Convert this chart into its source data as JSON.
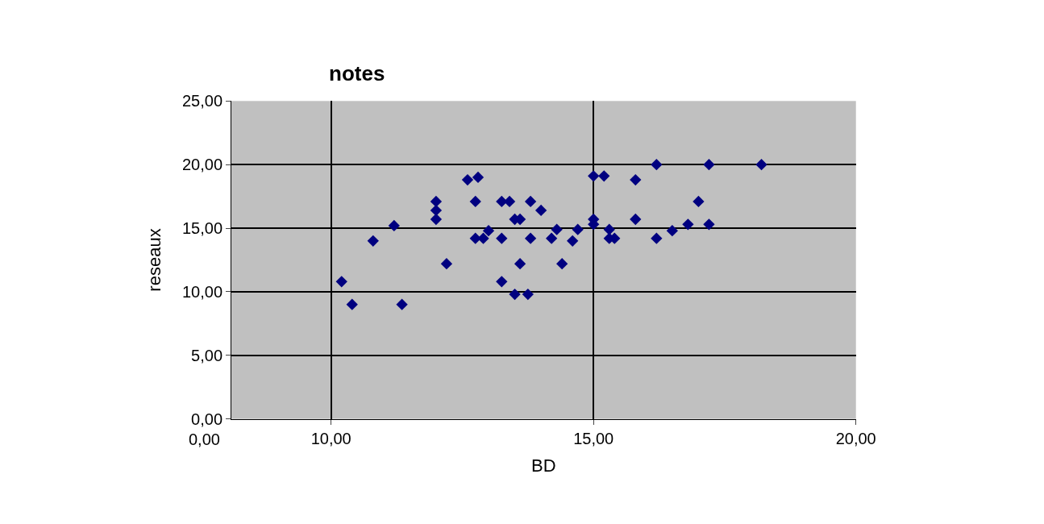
{
  "chart_data": {
    "type": "scatter",
    "title": "notes",
    "xlabel": "BD",
    "ylabel": "reseaux",
    "color": "#000080",
    "marker": "diamond",
    "grid": true,
    "annotations": [
      "0,00"
    ],
    "x": [
      10.2,
      10.4,
      10.8,
      11.2,
      11.35,
      12.0,
      12.0,
      12.0,
      12.2,
      12.6,
      12.8,
      12.75,
      12.75,
      12.9,
      13.0,
      13.25,
      13.4,
      13.25,
      13.25,
      13.5,
      13.6,
      13.6,
      13.5,
      13.75,
      13.8,
      13.8,
      14.0,
      14.2,
      14.3,
      14.4,
      14.6,
      14.7,
      15.0,
      15.2,
      15.0,
      15.0,
      15.3,
      15.3,
      15.4,
      15.8,
      15.8,
      16.2,
      16.2,
      16.5,
      16.8,
      17.0,
      17.2,
      17.2,
      18.2
    ],
    "values": [
      10.8,
      9.0,
      14.0,
      15.2,
      9.0,
      17.1,
      16.4,
      15.7,
      12.2,
      18.8,
      19.0,
      17.1,
      14.2,
      14.2,
      14.8,
      17.1,
      17.1,
      14.2,
      10.8,
      15.7,
      15.7,
      12.2,
      9.8,
      9.8,
      17.1,
      14.2,
      16.4,
      14.2,
      14.9,
      12.2,
      14.0,
      14.9,
      19.1,
      19.1,
      15.7,
      15.3,
      14.9,
      14.2,
      14.2,
      18.8,
      15.7,
      20.0,
      14.2,
      14.8,
      15.3,
      17.1,
      20.0,
      15.3,
      20.0
    ],
    "xlim": [
      8.1,
      20
    ],
    "xticks": [
      {
        "value": 10,
        "label": "10,00"
      },
      {
        "value": 15,
        "label": "15,00"
      },
      {
        "value": 20,
        "label": "20,00"
      }
    ],
    "ylim": [
      0,
      25
    ],
    "yticks": [
      {
        "value": 0,
        "label": "0,00"
      },
      {
        "value": 5,
        "label": "5,00"
      },
      {
        "value": 10,
        "label": "10,00"
      },
      {
        "value": 15,
        "label": "15,00"
      },
      {
        "value": 20,
        "label": "20,00"
      },
      {
        "value": 25,
        "label": "25,00"
      }
    ]
  }
}
